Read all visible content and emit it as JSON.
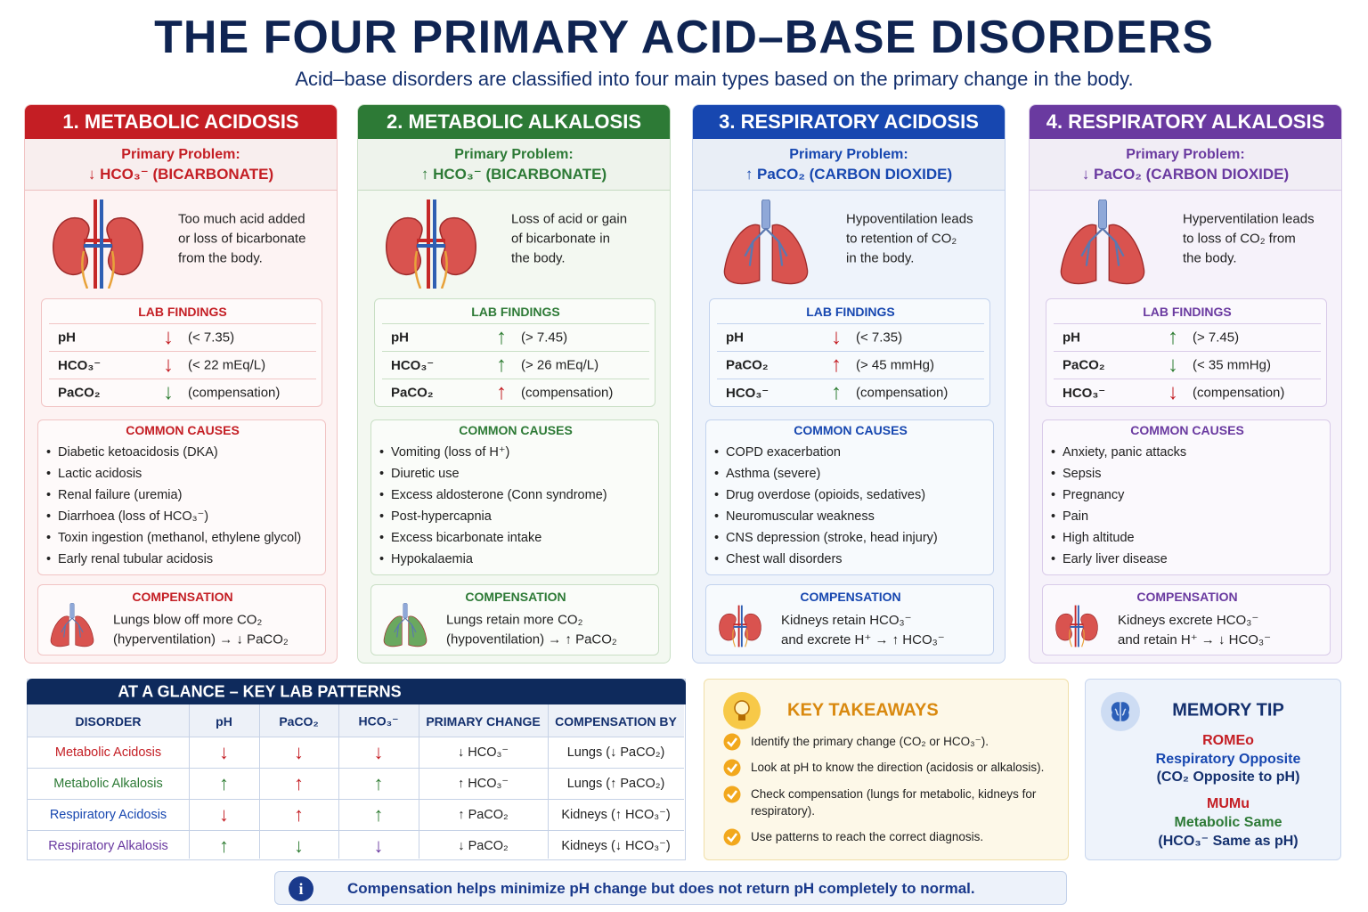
{
  "header": {
    "title": "THE FOUR PRIMARY ACID–BASE DISORDERS",
    "subtitle": "Acid–base disorders are classified into four main types based on the primary change in the body."
  },
  "disorders": [
    {
      "title": "1. METABOLIC ACIDOSIS",
      "color": "#c41e24",
      "tint": "#fdf3f3",
      "border": "#f1c4c4",
      "problem_label": "Primary Problem:",
      "problem": "↓ HCO₃⁻ (BICARBONATE)",
      "organ": "kidneys",
      "description": [
        "Too much acid added",
        "or loss of bicarbonate",
        "from the body."
      ],
      "lab_title": "LAB FINDINGS",
      "labs": [
        {
          "param": "pH",
          "arrow": "↓",
          "arrow_color": "#c41e24",
          "note": "(< 7.35)"
        },
        {
          "param": "HCO₃⁻",
          "arrow": "↓",
          "arrow_color": "#c41e24",
          "note": "(< 22 mEq/L)"
        },
        {
          "param": "PaCO₂",
          "arrow": "↓",
          "arrow_color": "#2e7d32",
          "note": "(compensation)"
        }
      ],
      "causes_title": "COMMON CAUSES",
      "causes": [
        "Diabetic ketoacidosis (DKA)",
        "Lactic acidosis",
        "Renal failure (uremia)",
        "Diarrhoea (loss of HCO₃⁻)",
        "Toxin ingestion (methanol, ethylene glycol)",
        "Early renal tubular acidosis"
      ],
      "compensation_title": "COMPENSATION",
      "compensation_organ": "lungs",
      "compensation_icon_color": "#d9534f",
      "compensation": [
        "Lungs blow off more CO₂",
        "(hyperventilation) → ↓ PaCO₂"
      ]
    },
    {
      "title": "2. METABOLIC ALKALOSIS",
      "color": "#2d7a36",
      "tint": "#f3f8f1",
      "border": "#c9dfc5",
      "problem_label": "Primary Problem:",
      "problem": "↑ HCO₃⁻ (BICARBONATE)",
      "organ": "kidneys",
      "description": [
        "Loss of acid or gain",
        "of bicarbonate in",
        "the body."
      ],
      "lab_title": "LAB FINDINGS",
      "labs": [
        {
          "param": "pH",
          "arrow": "↑",
          "arrow_color": "#2e7d32",
          "note": "(> 7.45)"
        },
        {
          "param": "HCO₃⁻",
          "arrow": "↑",
          "arrow_color": "#2e7d32",
          "note": "(> 26 mEq/L)"
        },
        {
          "param": "PaCO₂",
          "arrow": "↑",
          "arrow_color": "#c41e24",
          "note": "(compensation)"
        }
      ],
      "causes_title": "COMMON CAUSES",
      "causes": [
        "Vomiting (loss of H⁺)",
        "Diuretic use",
        "Excess aldosterone (Conn syndrome)",
        "Post-hypercapnia",
        "Excess bicarbonate intake",
        "Hypokalaemia"
      ],
      "compensation_title": "COMPENSATION",
      "compensation_organ": "lungs",
      "compensation_icon_color": "#6aa85f",
      "compensation": [
        "Lungs retain more CO₂",
        "(hypoventilation) → ↑ PaCO₂"
      ]
    },
    {
      "title": "3. RESPIRATORY ACIDOSIS",
      "color": "#1747b0",
      "tint": "#eef3fb",
      "border": "#c3d3ee",
      "problem_label": "Primary Problem:",
      "problem": "↑ PaCO₂ (CARBON DIOXIDE)",
      "organ": "lungs",
      "description": [
        "Hypoventilation leads",
        "to retention of CO₂",
        "in the body."
      ],
      "lab_title": "LAB FINDINGS",
      "labs": [
        {
          "param": "pH",
          "arrow": "↓",
          "arrow_color": "#c41e24",
          "note": "(< 7.35)"
        },
        {
          "param": "PaCO₂",
          "arrow": "↑",
          "arrow_color": "#c41e24",
          "note": "(> 45 mmHg)"
        },
        {
          "param": "HCO₃⁻",
          "arrow": "↑",
          "arrow_color": "#2e7d32",
          "note": "(compensation)"
        }
      ],
      "causes_title": "COMMON CAUSES",
      "causes": [
        "COPD exacerbation",
        "Asthma (severe)",
        "Drug overdose (opioids, sedatives)",
        "Neuromuscular weakness",
        "CNS depression (stroke, head injury)",
        "Chest wall disorders"
      ],
      "compensation_title": "COMPENSATION",
      "compensation_organ": "kidneys",
      "compensation_icon_color": "#d9534f",
      "compensation": [
        "Kidneys retain HCO₃⁻",
        "and excrete H⁺ → ↑ HCO₃⁻"
      ]
    },
    {
      "title": "4. RESPIRATORY ALKALOSIS",
      "color": "#6a3aa0",
      "tint": "#f6f2fa",
      "border": "#d9cbe9",
      "problem_label": "Primary Problem:",
      "problem": "↓ PaCO₂ (CARBON DIOXIDE)",
      "organ": "lungs",
      "description": [
        "Hyperventilation leads",
        "to loss of CO₂ from",
        "the body."
      ],
      "lab_title": "LAB FINDINGS",
      "labs": [
        {
          "param": "pH",
          "arrow": "↑",
          "arrow_color": "#2e7d32",
          "note": "(> 7.45)"
        },
        {
          "param": "PaCO₂",
          "arrow": "↓",
          "arrow_color": "#2e7d32",
          "note": "(< 35 mmHg)"
        },
        {
          "param": "HCO₃⁻",
          "arrow": "↓",
          "arrow_color": "#c41e24",
          "note": "(compensation)"
        }
      ],
      "causes_title": "COMMON CAUSES",
      "causes": [
        "Anxiety, panic attacks",
        "Sepsis",
        "Pregnancy",
        "Pain",
        "High altitude",
        "Early liver disease"
      ],
      "compensation_title": "COMPENSATION",
      "compensation_organ": "kidneys",
      "compensation_icon_color": "#d9534f",
      "compensation": [
        "Kidneys excrete HCO₃⁻",
        "and retain H⁺ → ↓ HCO₃⁻"
      ]
    }
  ],
  "glance": {
    "title": "AT A GLANCE – KEY LAB PATTERNS",
    "columns": [
      "DISORDER",
      "pH",
      "PaCO₂",
      "HCO₃⁻",
      "PRIMARY CHANGE",
      "COMPENSATION BY"
    ],
    "rows": [
      {
        "cells": [
          "Metabolic Acidosis",
          "↓",
          "↓",
          "↓",
          "↓ HCO₃⁻",
          "Lungs (↓ PaCO₂)"
        ],
        "name_color": "#c41e24",
        "arrow_colors": [
          "#c41e24",
          "#c41e24",
          "#c41e24"
        ]
      },
      {
        "cells": [
          "Metabolic Alkalosis",
          "↑",
          "↑",
          "↑",
          "↑ HCO₃⁻",
          "Lungs (↑ PaCO₂)"
        ],
        "name_color": "#2d7a36",
        "arrow_colors": [
          "#2e7d32",
          "#c41e24",
          "#2e7d32"
        ]
      },
      {
        "cells": [
          "Respiratory Acidosis",
          "↓",
          "↑",
          "↑",
          "↑ PaCO₂",
          "Kidneys (↑ HCO₃⁻)"
        ],
        "name_color": "#1747b0",
        "arrow_colors": [
          "#c41e24",
          "#c41e24",
          "#2e7d32"
        ]
      },
      {
        "cells": [
          "Respiratory Alkalosis",
          "↑",
          "↓",
          "↓",
          "↓ PaCO₂",
          "Kidneys (↓ HCO₃⁻)"
        ],
        "name_color": "#6a3aa0",
        "arrow_colors": [
          "#2e7d32",
          "#2e7d32",
          "#6a3aa0"
        ]
      }
    ]
  },
  "takeaways": {
    "title": "KEY TAKEAWAYS",
    "items": [
      "Identify the primary change (CO₂ or HCO₃⁻).",
      "Look at pH to know the direction (acidosis or alkalosis).",
      "Check compensation (lungs for metabolic, kidneys for respiratory).",
      "Use patterns to reach the correct diagnosis."
    ]
  },
  "memory_tip": {
    "title": "MEMORY TIP",
    "lines": [
      {
        "text": "ROMEo",
        "color": "#c41e24"
      },
      {
        "text": "Respiratory Opposite",
        "color": "#1747b0"
      },
      {
        "text": "(CO₂ Opposite to pH)",
        "color": "#14306e"
      },
      {
        "text": "MUMu",
        "color": "#c41e24"
      },
      {
        "text": "Metabolic Same",
        "color": "#2d7a36"
      },
      {
        "text": "(HCO₃⁻ Same as pH)",
        "color": "#14306e"
      }
    ]
  },
  "footer": {
    "icon": "i",
    "text": "Compensation helps minimize pH change but does not return pH completely to normal."
  }
}
